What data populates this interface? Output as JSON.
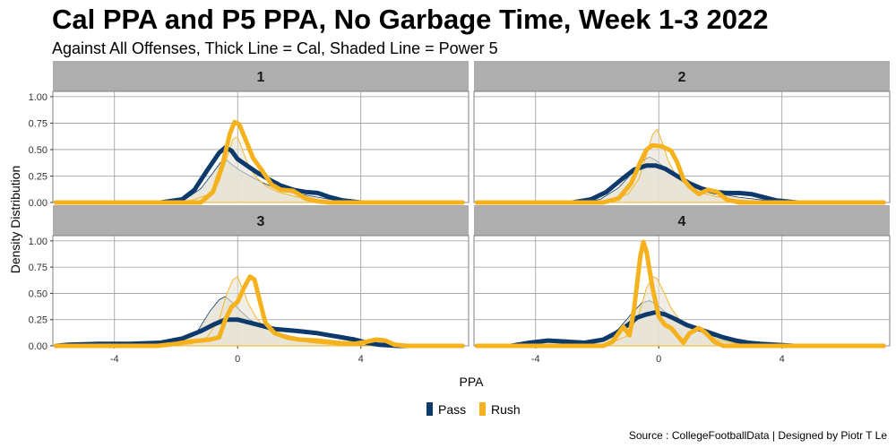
{
  "title": "Cal PPA and P5 PPA, No Garbage Time, Week 1-3 2022",
  "subtitle": "Against All Offenses, Thick Line = Cal, Shaded Line = Power 5",
  "caption": "Source : CollegeFootballData | Designed by Piotr T Le",
  "colors": {
    "pass": "#0d3a6b",
    "rush": "#f5b21c",
    "strip": "#aeaeae",
    "grid": "#9a9a9a",
    "shade": "#e6e3d6"
  },
  "chart_data": {
    "type": "line",
    "facet_type": "density",
    "xlabel": "PPA",
    "ylabel": "Density Distribution",
    "xlim": [
      -6,
      7.5
    ],
    "ylim": [
      0,
      1.05
    ],
    "x_ticks": [
      -4,
      0,
      4
    ],
    "x_tick_labels": [
      "-4",
      "0",
      "4"
    ],
    "y_ticks": [
      0,
      0.25,
      0.5,
      0.75,
      1
    ],
    "y_tick_labels": [
      "0.00",
      "0.25",
      "0.50",
      "0.75",
      "1.00"
    ],
    "legend": [
      {
        "name": "Pass",
        "color": "#0d3a6b"
      },
      {
        "name": "Rush",
        "color": "#f5b21c"
      }
    ],
    "legend_position": "bottom",
    "panels": [
      {
        "label": "1",
        "cal_pass": [
          [
            -5.9,
            0
          ],
          [
            -2.5,
            0
          ],
          [
            -1.8,
            0.03
          ],
          [
            -1.4,
            0.12
          ],
          [
            -1.0,
            0.3
          ],
          [
            -0.6,
            0.47
          ],
          [
            -0.4,
            0.52
          ],
          [
            -0.2,
            0.49
          ],
          [
            0,
            0.41
          ],
          [
            0.3,
            0.35
          ],
          [
            0.6,
            0.29
          ],
          [
            1.0,
            0.22
          ],
          [
            1.4,
            0.16
          ],
          [
            1.8,
            0.12
          ],
          [
            2.2,
            0.1
          ],
          [
            2.6,
            0.09
          ],
          [
            3.0,
            0.05
          ],
          [
            3.4,
            0.02
          ],
          [
            4.0,
            0
          ],
          [
            7.3,
            0
          ]
        ],
        "cal_rush": [
          [
            -5.9,
            0
          ],
          [
            -1.2,
            0
          ],
          [
            -0.8,
            0.1
          ],
          [
            -0.5,
            0.35
          ],
          [
            -0.25,
            0.65
          ],
          [
            -0.1,
            0.76
          ],
          [
            0.05,
            0.74
          ],
          [
            0.25,
            0.6
          ],
          [
            0.5,
            0.42
          ],
          [
            0.8,
            0.3
          ],
          [
            1.1,
            0.17
          ],
          [
            1.4,
            0.12
          ],
          [
            1.8,
            0.11
          ],
          [
            2.2,
            0.04
          ],
          [
            2.6,
            0.01
          ],
          [
            3.0,
            0
          ],
          [
            7.3,
            0
          ]
        ],
        "p5_pass": [
          [
            -2.3,
            0
          ],
          [
            -1.7,
            0.03
          ],
          [
            -1.2,
            0.13
          ],
          [
            -0.8,
            0.28
          ],
          [
            -0.55,
            0.38
          ],
          [
            -0.35,
            0.4
          ],
          [
            -0.15,
            0.35
          ],
          [
            0.1,
            0.3
          ],
          [
            0.4,
            0.25
          ],
          [
            0.8,
            0.19
          ],
          [
            1.2,
            0.14
          ],
          [
            1.8,
            0.09
          ],
          [
            2.4,
            0.06
          ],
          [
            3.0,
            0.03
          ],
          [
            3.6,
            0.01
          ],
          [
            4.2,
            0
          ]
        ],
        "p5_rush": [
          [
            -2.3,
            0
          ],
          [
            -1.5,
            0.02
          ],
          [
            -0.9,
            0.08
          ],
          [
            -0.6,
            0.2
          ],
          [
            -0.35,
            0.42
          ],
          [
            -0.15,
            0.6
          ],
          [
            0.0,
            0.62
          ],
          [
            0.15,
            0.5
          ],
          [
            0.35,
            0.35
          ],
          [
            0.6,
            0.24
          ],
          [
            0.9,
            0.16
          ],
          [
            1.3,
            0.1
          ],
          [
            1.8,
            0.06
          ],
          [
            2.4,
            0.03
          ],
          [
            3.2,
            0.01
          ],
          [
            4.2,
            0
          ]
        ]
      },
      {
        "label": "2",
        "cal_pass": [
          [
            -5.9,
            0
          ],
          [
            -2.8,
            0
          ],
          [
            -2.2,
            0.03
          ],
          [
            -1.7,
            0.1
          ],
          [
            -1.2,
            0.22
          ],
          [
            -0.8,
            0.31
          ],
          [
            -0.4,
            0.35
          ],
          [
            -0.1,
            0.35
          ],
          [
            0.2,
            0.32
          ],
          [
            0.6,
            0.25
          ],
          [
            1.0,
            0.18
          ],
          [
            1.4,
            0.13
          ],
          [
            1.8,
            0.1
          ],
          [
            2.2,
            0.09
          ],
          [
            2.6,
            0.09
          ],
          [
            3.0,
            0.08
          ],
          [
            3.4,
            0.05
          ],
          [
            3.8,
            0.02
          ],
          [
            4.5,
            0
          ],
          [
            7.3,
            0
          ]
        ],
        "cal_rush": [
          [
            -5.9,
            0
          ],
          [
            -1.8,
            0
          ],
          [
            -1.3,
            0.04
          ],
          [
            -0.9,
            0.18
          ],
          [
            -0.6,
            0.38
          ],
          [
            -0.4,
            0.5
          ],
          [
            -0.2,
            0.54
          ],
          [
            0.1,
            0.53
          ],
          [
            0.4,
            0.49
          ],
          [
            0.6,
            0.38
          ],
          [
            0.8,
            0.22
          ],
          [
            1.0,
            0.15
          ],
          [
            1.3,
            0.08
          ],
          [
            1.6,
            0.12
          ],
          [
            1.9,
            0.1
          ],
          [
            2.2,
            0.03
          ],
          [
            2.6,
            0
          ],
          [
            7.3,
            0
          ]
        ],
        "p5_pass": [
          [
            -2.6,
            0
          ],
          [
            -1.9,
            0.03
          ],
          [
            -1.3,
            0.14
          ],
          [
            -0.8,
            0.3
          ],
          [
            -0.5,
            0.4
          ],
          [
            -0.3,
            0.43
          ],
          [
            -0.1,
            0.4
          ],
          [
            0.2,
            0.33
          ],
          [
            0.5,
            0.26
          ],
          [
            0.9,
            0.19
          ],
          [
            1.4,
            0.12
          ],
          [
            2.0,
            0.08
          ],
          [
            2.6,
            0.05
          ],
          [
            3.2,
            0.03
          ],
          [
            3.8,
            0.01
          ],
          [
            4.6,
            0
          ]
        ],
        "p5_rush": [
          [
            -2.4,
            0
          ],
          [
            -1.6,
            0.02
          ],
          [
            -1.0,
            0.08
          ],
          [
            -0.65,
            0.22
          ],
          [
            -0.4,
            0.45
          ],
          [
            -0.2,
            0.64
          ],
          [
            -0.05,
            0.69
          ],
          [
            0.1,
            0.58
          ],
          [
            0.3,
            0.4
          ],
          [
            0.55,
            0.26
          ],
          [
            0.9,
            0.16
          ],
          [
            1.3,
            0.1
          ],
          [
            1.8,
            0.06
          ],
          [
            2.4,
            0.03
          ],
          [
            3.2,
            0.01
          ],
          [
            4.4,
            0
          ]
        ]
      },
      {
        "label": "3",
        "cal_pass": [
          [
            -5.9,
            0
          ],
          [
            -5.5,
            0.01
          ],
          [
            -4.5,
            0.02
          ],
          [
            -3.5,
            0.02
          ],
          [
            -2.5,
            0.03
          ],
          [
            -1.8,
            0.07
          ],
          [
            -1.2,
            0.14
          ],
          [
            -0.8,
            0.2
          ],
          [
            -0.4,
            0.25
          ],
          [
            0.0,
            0.25
          ],
          [
            0.4,
            0.22
          ],
          [
            0.8,
            0.19
          ],
          [
            1.2,
            0.16
          ],
          [
            1.6,
            0.15
          ],
          [
            2.0,
            0.14
          ],
          [
            2.6,
            0.12
          ],
          [
            3.0,
            0.1
          ],
          [
            3.4,
            0.08
          ],
          [
            3.8,
            0.06
          ],
          [
            4.2,
            0.03
          ],
          [
            4.6,
            0.01
          ],
          [
            5.2,
            0
          ],
          [
            7.3,
            0
          ]
        ],
        "cal_rush": [
          [
            -5.9,
            0
          ],
          [
            -2.6,
            0
          ],
          [
            -2.0,
            0.02
          ],
          [
            -1.6,
            0.04
          ],
          [
            -1.2,
            0.05
          ],
          [
            -0.9,
            0.06
          ],
          [
            -0.6,
            0.08
          ],
          [
            -0.4,
            0.25
          ],
          [
            -0.2,
            0.37
          ],
          [
            0.0,
            0.42
          ],
          [
            0.2,
            0.55
          ],
          [
            0.4,
            0.66
          ],
          [
            0.55,
            0.63
          ],
          [
            0.7,
            0.45
          ],
          [
            0.9,
            0.22
          ],
          [
            1.2,
            0.12
          ],
          [
            1.6,
            0.08
          ],
          [
            2.0,
            0.06
          ],
          [
            2.6,
            0.05
          ],
          [
            3.2,
            0.03
          ],
          [
            3.8,
            0.02
          ],
          [
            4.2,
            0.04
          ],
          [
            4.5,
            0.06
          ],
          [
            4.8,
            0.05
          ],
          [
            5.1,
            0.01
          ],
          [
            5.5,
            0
          ],
          [
            7.3,
            0
          ]
        ],
        "p5_pass": [
          [
            -2.6,
            0
          ],
          [
            -1.9,
            0.03
          ],
          [
            -1.3,
            0.14
          ],
          [
            -0.9,
            0.33
          ],
          [
            -0.6,
            0.44
          ],
          [
            -0.4,
            0.47
          ],
          [
            -0.2,
            0.42
          ],
          [
            0.1,
            0.33
          ],
          [
            0.4,
            0.25
          ],
          [
            0.8,
            0.18
          ],
          [
            1.3,
            0.12
          ],
          [
            1.9,
            0.08
          ],
          [
            2.5,
            0.05
          ],
          [
            3.1,
            0.03
          ],
          [
            3.7,
            0.01
          ],
          [
            4.5,
            0
          ]
        ],
        "p5_rush": [
          [
            -2.4,
            0
          ],
          [
            -1.5,
            0.02
          ],
          [
            -1.0,
            0.08
          ],
          [
            -0.6,
            0.25
          ],
          [
            -0.35,
            0.5
          ],
          [
            -0.15,
            0.63
          ],
          [
            0.0,
            0.66
          ],
          [
            0.15,
            0.55
          ],
          [
            0.35,
            0.4
          ],
          [
            0.6,
            0.27
          ],
          [
            0.9,
            0.17
          ],
          [
            1.3,
            0.1
          ],
          [
            1.8,
            0.06
          ],
          [
            2.4,
            0.03
          ],
          [
            3.2,
            0.01
          ],
          [
            4.4,
            0
          ]
        ]
      },
      {
        "label": "4",
        "cal_pass": [
          [
            -5.9,
            0
          ],
          [
            -4.8,
            0
          ],
          [
            -4.2,
            0.03
          ],
          [
            -3.6,
            0.05
          ],
          [
            -3.0,
            0.04
          ],
          [
            -2.4,
            0.03
          ],
          [
            -1.8,
            0.06
          ],
          [
            -1.4,
            0.12
          ],
          [
            -1.0,
            0.2
          ],
          [
            -0.7,
            0.27
          ],
          [
            -0.4,
            0.3
          ],
          [
            -0.1,
            0.32
          ],
          [
            0.2,
            0.3
          ],
          [
            0.5,
            0.26
          ],
          [
            0.9,
            0.2
          ],
          [
            1.3,
            0.16
          ],
          [
            1.7,
            0.12
          ],
          [
            2.1,
            0.08
          ],
          [
            2.5,
            0.05
          ],
          [
            2.9,
            0.03
          ],
          [
            3.3,
            0.02
          ],
          [
            3.8,
            0.01
          ],
          [
            4.4,
            0
          ],
          [
            7.3,
            0
          ]
        ],
        "cal_rush": [
          [
            -5.9,
            0
          ],
          [
            -1.8,
            0
          ],
          [
            -1.5,
            0.04
          ],
          [
            -1.3,
            0.12
          ],
          [
            -1.15,
            0.18
          ],
          [
            -0.95,
            0.1
          ],
          [
            -0.8,
            0.35
          ],
          [
            -0.6,
            0.85
          ],
          [
            -0.5,
            0.99
          ],
          [
            -0.4,
            0.9
          ],
          [
            -0.2,
            0.55
          ],
          [
            0.0,
            0.28
          ],
          [
            0.2,
            0.2
          ],
          [
            0.4,
            0.17
          ],
          [
            0.6,
            0.1
          ],
          [
            0.8,
            0.03
          ],
          [
            1.0,
            0.12
          ],
          [
            1.3,
            0.17
          ],
          [
            1.5,
            0.13
          ],
          [
            1.8,
            0.04
          ],
          [
            2.1,
            0
          ],
          [
            7.3,
            0
          ]
        ],
        "p5_pass": [
          [
            -2.8,
            0
          ],
          [
            -2.0,
            0.03
          ],
          [
            -1.4,
            0.13
          ],
          [
            -0.9,
            0.3
          ],
          [
            -0.55,
            0.41
          ],
          [
            -0.3,
            0.43
          ],
          [
            -0.05,
            0.39
          ],
          [
            0.3,
            0.3
          ],
          [
            0.7,
            0.22
          ],
          [
            1.2,
            0.15
          ],
          [
            1.8,
            0.09
          ],
          [
            2.4,
            0.06
          ],
          [
            3.0,
            0.03
          ],
          [
            3.6,
            0.01
          ],
          [
            4.4,
            0
          ]
        ],
        "p5_rush": [
          [
            -2.4,
            0
          ],
          [
            -1.6,
            0.02
          ],
          [
            -1.0,
            0.1
          ],
          [
            -0.65,
            0.3
          ],
          [
            -0.4,
            0.55
          ],
          [
            -0.2,
            0.66
          ],
          [
            -0.05,
            0.64
          ],
          [
            0.15,
            0.52
          ],
          [
            0.4,
            0.36
          ],
          [
            0.7,
            0.24
          ],
          [
            1.0,
            0.2
          ],
          [
            1.3,
            0.18
          ],
          [
            1.6,
            0.1
          ],
          [
            2.0,
            0.05
          ],
          [
            2.6,
            0.02
          ],
          [
            3.4,
            0.01
          ],
          [
            4.4,
            0
          ]
        ]
      }
    ]
  }
}
